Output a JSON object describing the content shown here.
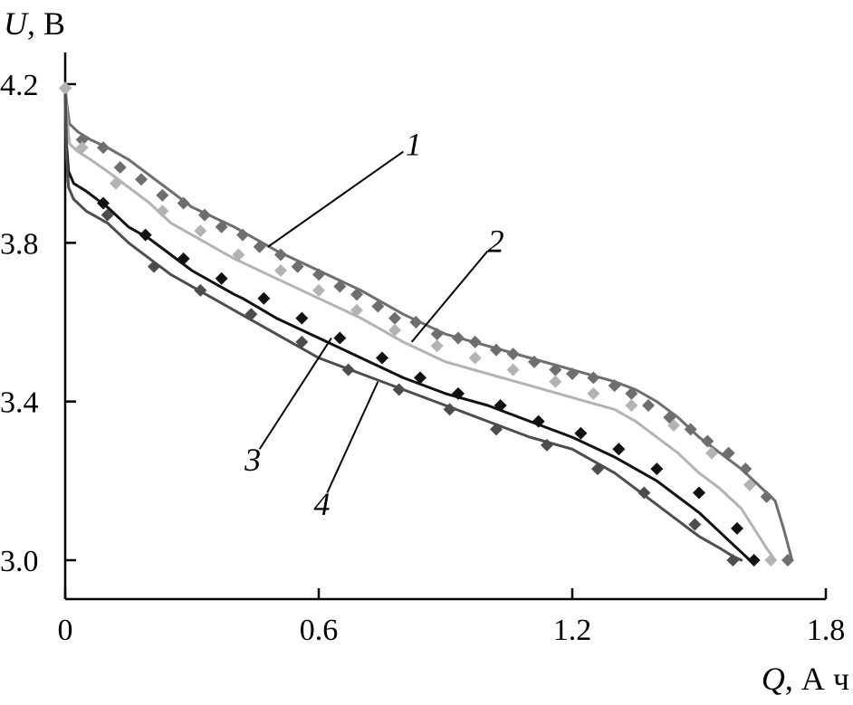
{
  "chart_data": {
    "type": "line",
    "title": "",
    "ylabel_var": "U",
    "ylabel_unit": ", В",
    "xlabel_var": "Q",
    "xlabel_unit": ", А ч",
    "xlim": [
      0,
      1.8
    ],
    "ylim": [
      2.9,
      4.25
    ],
    "xticks": [
      0,
      0.6,
      1.2,
      1.8
    ],
    "xtick_labels": [
      "0",
      "0.6",
      "1.2",
      "1.8"
    ],
    "yticks": [
      3.0,
      3.4,
      3.8,
      4.2
    ],
    "ytick_labels": [
      "3.0",
      "3.4",
      "3.8",
      "4.2"
    ],
    "grid": false,
    "series": [
      {
        "name": "1",
        "line_color": "#6e6e6e",
        "marker_color": "#6e6e6e",
        "line": {
          "x": [
            0.0,
            0.004,
            0.01,
            0.03,
            0.06,
            0.1,
            0.15,
            0.2,
            0.25,
            0.3,
            0.4,
            0.5,
            0.6,
            0.7,
            0.8,
            0.9,
            1.0,
            1.1,
            1.2,
            1.3,
            1.35,
            1.4,
            1.45,
            1.5,
            1.55,
            1.6,
            1.65,
            1.68,
            1.7,
            1.72
          ],
          "y": [
            4.19,
            4.15,
            4.1,
            4.08,
            4.06,
            4.04,
            4.01,
            3.97,
            3.93,
            3.89,
            3.84,
            3.78,
            3.73,
            3.68,
            3.62,
            3.57,
            3.54,
            3.51,
            3.48,
            3.45,
            3.43,
            3.4,
            3.36,
            3.31,
            3.27,
            3.23,
            3.18,
            3.15,
            3.08,
            3.0
          ]
        },
        "markers": {
          "x": [
            0.0,
            0.04,
            0.09,
            0.13,
            0.18,
            0.23,
            0.28,
            0.33,
            0.37,
            0.42,
            0.46,
            0.51,
            0.55,
            0.6,
            0.65,
            0.69,
            0.74,
            0.78,
            0.83,
            0.88,
            0.93,
            0.97,
            1.02,
            1.06,
            1.11,
            1.16,
            1.2,
            1.25,
            1.3,
            1.34,
            1.38,
            1.43,
            1.48,
            1.52,
            1.57,
            1.61,
            1.66,
            1.71
          ],
          "y": [
            4.19,
            4.06,
            4.04,
            3.99,
            3.96,
            3.92,
            3.9,
            3.87,
            3.84,
            3.82,
            3.79,
            3.77,
            3.74,
            3.72,
            3.69,
            3.67,
            3.64,
            3.61,
            3.6,
            3.57,
            3.56,
            3.55,
            3.53,
            3.52,
            3.5,
            3.48,
            3.47,
            3.46,
            3.44,
            3.42,
            3.39,
            3.36,
            3.33,
            3.3,
            3.27,
            3.23,
            3.16,
            3.0
          ]
        }
      },
      {
        "name": "2",
        "line_color": "#b3b3b3",
        "marker_color": "#b3b3b3",
        "line": {
          "x": [
            0.0,
            0.004,
            0.01,
            0.03,
            0.06,
            0.1,
            0.15,
            0.2,
            0.25,
            0.3,
            0.4,
            0.5,
            0.6,
            0.7,
            0.8,
            0.9,
            1.0,
            1.1,
            1.2,
            1.3,
            1.35,
            1.4,
            1.45,
            1.5,
            1.55,
            1.6,
            1.63,
            1.66,
            1.68
          ],
          "y": [
            4.19,
            4.12,
            4.05,
            4.03,
            4.01,
            3.98,
            3.94,
            3.9,
            3.85,
            3.82,
            3.76,
            3.71,
            3.66,
            3.61,
            3.55,
            3.5,
            3.47,
            3.44,
            3.41,
            3.38,
            3.35,
            3.31,
            3.27,
            3.22,
            3.18,
            3.13,
            3.08,
            3.03,
            3.0
          ]
        },
        "markers": {
          "x": [
            0.0,
            0.04,
            0.12,
            0.23,
            0.32,
            0.41,
            0.51,
            0.6,
            0.69,
            0.78,
            0.88,
            0.97,
            1.06,
            1.16,
            1.25,
            1.34,
            1.44,
            1.53,
            1.62,
            1.67
          ],
          "y": [
            4.19,
            4.04,
            3.95,
            3.88,
            3.83,
            3.77,
            3.73,
            3.68,
            3.63,
            3.58,
            3.54,
            3.51,
            3.48,
            3.45,
            3.42,
            3.39,
            3.34,
            3.27,
            3.19,
            3.0
          ]
        }
      },
      {
        "name": "3",
        "line_color": "#111111",
        "marker_color": "#111111",
        "line": {
          "x": [
            0.0,
            0.003,
            0.008,
            0.02,
            0.05,
            0.1,
            0.15,
            0.2,
            0.25,
            0.3,
            0.4,
            0.42,
            0.5,
            0.6,
            0.7,
            0.8,
            0.9,
            1.0,
            1.1,
            1.2,
            1.3,
            1.35,
            1.4,
            1.45,
            1.5,
            1.55,
            1.58,
            1.6,
            1.62
          ],
          "y": [
            4.19,
            4.05,
            3.98,
            3.95,
            3.93,
            3.89,
            3.84,
            3.81,
            3.77,
            3.73,
            3.67,
            3.66,
            3.61,
            3.56,
            3.51,
            3.46,
            3.42,
            3.39,
            3.35,
            3.31,
            3.26,
            3.23,
            3.2,
            3.16,
            3.12,
            3.07,
            3.04,
            3.02,
            3.0
          ]
        },
        "markers": {
          "x": [
            0.09,
            0.19,
            0.28,
            0.37,
            0.47,
            0.56,
            0.65,
            0.75,
            0.84,
            0.93,
            1.03,
            1.12,
            1.22,
            1.31,
            1.4,
            1.5,
            1.59,
            1.63
          ],
          "y": [
            3.9,
            3.82,
            3.76,
            3.71,
            3.66,
            3.61,
            3.56,
            3.51,
            3.46,
            3.42,
            3.39,
            3.35,
            3.32,
            3.28,
            3.23,
            3.17,
            3.08,
            3.0
          ]
        }
      },
      {
        "name": "4",
        "line_color": "#4d4d4d",
        "marker_color": "#4d4d4d",
        "line": {
          "x": [
            0.0,
            0.003,
            0.008,
            0.02,
            0.05,
            0.1,
            0.15,
            0.2,
            0.25,
            0.3,
            0.4,
            0.5,
            0.6,
            0.7,
            0.8,
            0.9,
            1.0,
            1.1,
            1.2,
            1.3,
            1.35,
            1.4,
            1.45,
            1.5,
            1.55,
            1.58,
            1.6
          ],
          "y": [
            4.19,
            4.02,
            3.94,
            3.91,
            3.88,
            3.85,
            3.8,
            3.76,
            3.72,
            3.69,
            3.63,
            3.57,
            3.51,
            3.47,
            3.43,
            3.39,
            3.35,
            3.31,
            3.28,
            3.22,
            3.18,
            3.14,
            3.1,
            3.06,
            3.03,
            3.01,
            3.0
          ]
        },
        "markers": {
          "x": [
            0.1,
            0.21,
            0.32,
            0.44,
            0.56,
            0.67,
            0.79,
            0.91,
            1.02,
            1.14,
            1.26,
            1.37,
            1.49,
            1.58
          ],
          "y": [
            3.87,
            3.74,
            3.68,
            3.62,
            3.55,
            3.48,
            3.43,
            3.38,
            3.33,
            3.29,
            3.23,
            3.17,
            3.09,
            3.0
          ]
        }
      }
    ],
    "annotations": [
      {
        "text": "1",
        "target": [
          0.48,
          3.79
        ],
        "label_at": [
          0.8,
          4.03
        ]
      },
      {
        "text": "2",
        "target": [
          0.82,
          3.55
        ],
        "label_at": [
          1.0,
          3.78
        ]
      },
      {
        "text": "3",
        "target": [
          0.63,
          3.56
        ],
        "label_at": [
          0.46,
          3.28
        ]
      },
      {
        "text": "4",
        "target": [
          0.74,
          3.45
        ],
        "label_at": [
          0.62,
          3.17
        ]
      }
    ]
  }
}
